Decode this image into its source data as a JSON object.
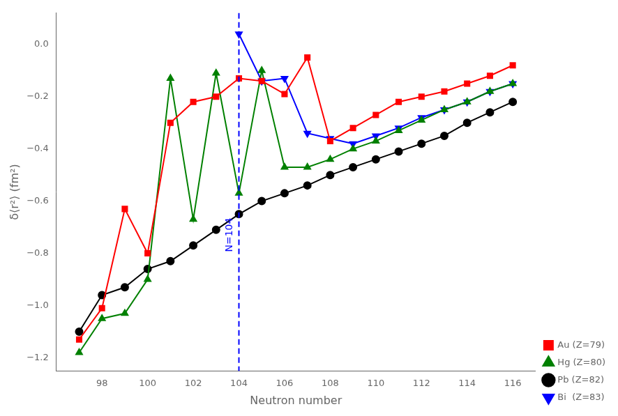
{
  "chart_data": {
    "type": "line",
    "x": [
      97,
      98,
      99,
      100,
      101,
      102,
      103,
      104,
      105,
      106,
      107,
      108,
      109,
      110,
      111,
      112,
      113,
      114,
      115,
      116
    ],
    "series": [
      {
        "name": "Au (Z=79)",
        "color": "#ff0000",
        "marker": "square",
        "values": [
          -1.13,
          -1.01,
          -0.63,
          -0.8,
          -0.3,
          -0.22,
          -0.2,
          -0.13,
          -0.14,
          -0.19,
          -0.05,
          -0.37,
          -0.32,
          -0.27,
          -0.22,
          -0.2,
          -0.18,
          -0.15,
          -0.12,
          -0.08
        ]
      },
      {
        "name": "Hg (Z=80)",
        "color": "#008000",
        "marker": "triangle-up",
        "values": [
          -1.18,
          -1.05,
          -1.03,
          -0.9,
          -0.13,
          -0.67,
          -0.11,
          -0.57,
          -0.1,
          -0.47,
          -0.47,
          -0.44,
          -0.4,
          -0.37,
          -0.33,
          -0.29,
          -0.25,
          -0.22,
          -0.18,
          -0.15
        ]
      },
      {
        "name": "Pb (Z=82)",
        "color": "#000000",
        "marker": "circle",
        "values": [
          -1.1,
          -0.96,
          -0.93,
          -0.86,
          -0.83,
          -0.77,
          -0.71,
          -0.65,
          -0.6,
          -0.57,
          -0.54,
          -0.5,
          -0.47,
          -0.44,
          -0.41,
          -0.38,
          -0.35,
          -0.3,
          -0.26,
          -0.22
        ]
      },
      {
        "name": "Bi  (Z=83)",
        "color": "#0000ff",
        "marker": "triangle-down",
        "values": [
          null,
          null,
          null,
          null,
          null,
          null,
          null,
          0.04,
          -0.14,
          -0.13,
          -0.34,
          -0.36,
          -0.38,
          -0.35,
          -0.32,
          -0.28,
          -0.25,
          -0.22,
          -0.18,
          -0.15
        ]
      }
    ],
    "xlabel": "Neutron number",
    "ylabel": "δ⟨r²⟩ (fm²)",
    "xlim": [
      96,
      117
    ],
    "ylim": [
      -1.25,
      0.12
    ],
    "xticks": [
      98,
      100,
      102,
      104,
      106,
      108,
      110,
      112,
      114,
      116
    ],
    "yticks": [
      {
        "value": 0,
        "label": "0.0"
      },
      {
        "value": -0.2,
        "label": "−0.2"
      },
      {
        "value": -0.4,
        "label": "−0.4"
      },
      {
        "value": -0.6,
        "label": "−0.6"
      },
      {
        "value": -0.8,
        "label": "−0.8"
      },
      {
        "value": -1.0,
        "label": "−1.0"
      },
      {
        "value": -1.2,
        "label": "−1.2"
      }
    ],
    "annotations": [
      {
        "type": "vline",
        "x": 104,
        "text": "N=104",
        "color": "#0000ff",
        "line_style": "dashed"
      }
    ],
    "grid": false,
    "legend": "lower right"
  }
}
